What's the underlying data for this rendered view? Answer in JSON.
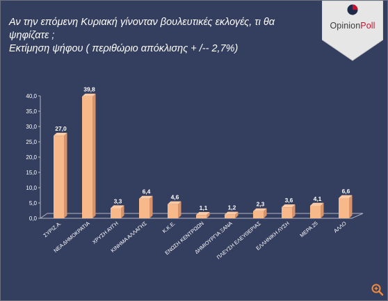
{
  "header": {
    "title_line1": "Αν την επόμενη Κυριακή γίνονταν βουλευτικές εκλογές, τι θα",
    "title_line2": "ψηφίζατε ;",
    "title_line3": "Εκτίμηση ψήφου ( περιθώριο απόκλισης + /-- 2,7%)"
  },
  "logo": {
    "brand_prefix": "Opinion",
    "brand_suffix": "Poll",
    "colors": {
      "red": "#c8102e",
      "navy": "#1f2a4a"
    }
  },
  "zoom_icon": "zoom-in-icon",
  "chart_data": {
    "type": "bar",
    "categories": [
      "ΣΥΡΙΖ.Α.",
      "ΝΕΑ ΔΗΜΟΚΡΑΤΙΑ",
      "ΧΡΥΣΗ ΑΥΓΗ",
      "ΚΙΝΗΜΑ ΑΛΛΑΓΗΣ",
      "Κ.Κ.Ε.",
      "ΕΝΩΣΗ ΚΕΝΤΡΩΩΝ",
      "ΔΗΜΙΟΥΡΓΙΑ ΞΑΝΑ",
      "ΠΛΕΥΣΗ ΕΛΕΥΘΕΡΙΑΣ",
      "ΕΛΛΗΝΙΚΗ ΛΥΣΗ",
      "ΜΕΡΑ 25",
      "ΑΛΛΟ"
    ],
    "values": [
      27.0,
      39.8,
      3.3,
      6.4,
      4.6,
      1.1,
      1.2,
      2.3,
      3.6,
      4.1,
      6.6
    ],
    "value_labels": [
      "27,0",
      "39,8",
      "3,3",
      "6,4",
      "4,6",
      "1,1",
      "1,2",
      "2,3",
      "3,6",
      "4,1",
      "6,6"
    ],
    "yticks": [
      "0,0",
      "5,0",
      "10,0",
      "15,0",
      "20,0",
      "25,0",
      "30,0",
      "35,0",
      "40,0"
    ],
    "ylim": [
      0,
      40
    ],
    "grid": false,
    "legend": "none",
    "colors": {
      "bar": "#f8b98a",
      "bar_top": "#fccba5",
      "bar_side": "#d9936a",
      "axis": "#b4b8c4",
      "text": "#ffffff"
    }
  }
}
